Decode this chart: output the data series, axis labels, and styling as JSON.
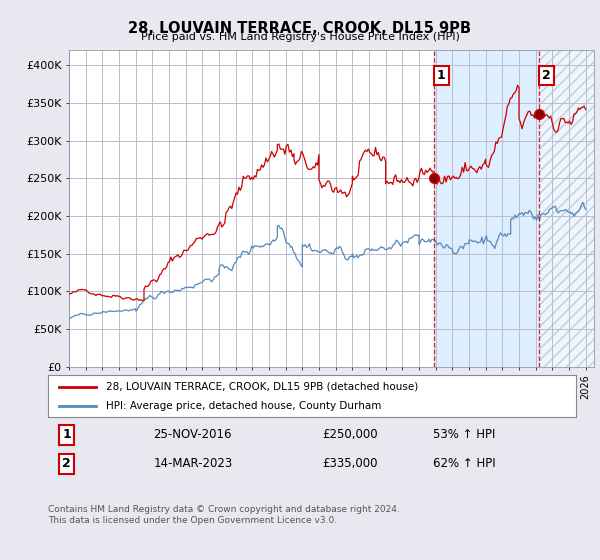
{
  "title": "28, LOUVAIN TERRACE, CROOK, DL15 9PB",
  "subtitle": "Price paid vs. HM Land Registry's House Price Index (HPI)",
  "ylim": [
    0,
    420000
  ],
  "yticks": [
    0,
    50000,
    100000,
    150000,
    200000,
    250000,
    300000,
    350000,
    400000
  ],
  "ytick_labels": [
    "£0",
    "£50K",
    "£100K",
    "£150K",
    "£200K",
    "£250K",
    "£300K",
    "£350K",
    "£400K"
  ],
  "red_color": "#cc0000",
  "blue_color": "#5588bb",
  "bg_color": "#e8e8f0",
  "plot_bg": "#ffffff",
  "shade_color": "#ddeeff",
  "grid_color": "#bbbbcc",
  "sale1_date": 2016.92,
  "sale1_price": 250000,
  "sale2_date": 2023.21,
  "sale2_price": 335000,
  "xlim_start": 1995,
  "xlim_end": 2026.5,
  "legend_line1": "28, LOUVAIN TERRACE, CROOK, DL15 9PB (detached house)",
  "legend_line2": "HPI: Average price, detached house, County Durham",
  "table_row1_num": "1",
  "table_row1_date": "25-NOV-2016",
  "table_row1_price": "£250,000",
  "table_row1_hpi": "53% ↑ HPI",
  "table_row2_num": "2",
  "table_row2_date": "14-MAR-2023",
  "table_row2_price": "£335,000",
  "table_row2_hpi": "62% ↑ HPI",
  "footer": "Contains HM Land Registry data © Crown copyright and database right 2024.\nThis data is licensed under the Open Government Licence v3.0."
}
